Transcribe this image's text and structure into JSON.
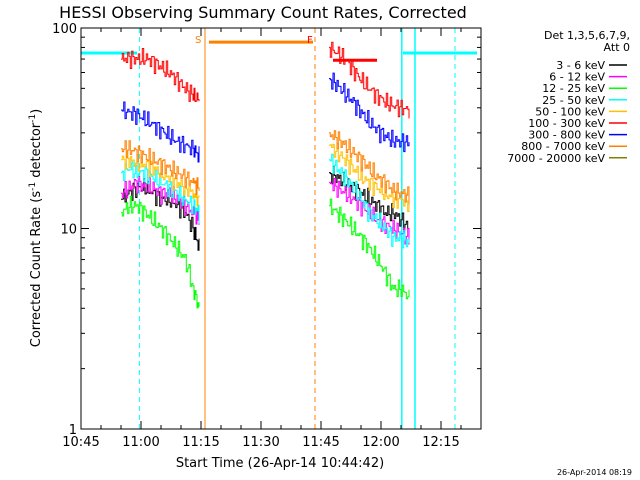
{
  "chart_data": {
    "type": "line",
    "title": "HESSI Observing Summary Count Rates, Corrected",
    "xlabel": "Start Time (26-Apr-14 10:44:42)",
    "ylabel": "Corrected Count Rate (s⁻¹ detector⁻¹)",
    "ylabel_main": "Corrected Count Rate (s",
    "ylabel_mid": " detector",
    "ylabel_end": ")",
    "yscale": "log",
    "ylim": [
      1,
      100
    ],
    "xlim_minutes": [
      0,
      100
    ],
    "x_ticks": [
      {
        "label": "10:45",
        "minute": 0
      },
      {
        "label": "11:00",
        "minute": 15
      },
      {
        "label": "11:15",
        "minute": 30
      },
      {
        "label": "11:30",
        "minute": 45
      },
      {
        "label": "11:45",
        "minute": 60
      },
      {
        "label": "12:00",
        "minute": 75
      },
      {
        "label": "12:15",
        "minute": 90
      }
    ],
    "y_ticks": [
      {
        "label": "1",
        "value": 1
      },
      {
        "label": "10",
        "value": 10
      },
      {
        "label": "100",
        "value": 100
      }
    ],
    "legend_header": [
      "Det 1,3,5,6,7,9,",
      "Att 0"
    ],
    "legend_placement": "right",
    "series": [
      {
        "name": "3 - 6 keV",
        "color": "#000000",
        "values": [
          [
            10,
            14
          ],
          [
            12,
            15
          ],
          [
            14,
            16
          ],
          [
            16,
            16
          ],
          [
            18,
            15
          ],
          [
            20,
            14
          ],
          [
            22,
            14
          ],
          [
            24,
            13
          ],
          [
            26,
            12
          ],
          [
            28,
            10
          ],
          [
            29.5,
            8
          ],
          [
            62,
            19
          ],
          [
            64,
            18
          ],
          [
            66,
            17
          ],
          [
            68,
            16
          ],
          [
            70,
            15
          ],
          [
            72,
            14
          ],
          [
            74,
            13
          ],
          [
            76,
            12
          ],
          [
            78,
            12
          ],
          [
            80,
            11
          ],
          [
            82,
            10
          ]
        ]
      },
      {
        "name": "6 - 12 keV",
        "color": "#ff00ff",
        "values": [
          [
            10,
            15
          ],
          [
            12,
            16
          ],
          [
            14,
            17
          ],
          [
            16,
            16
          ],
          [
            18,
            16
          ],
          [
            20,
            15
          ],
          [
            22,
            15
          ],
          [
            24,
            14
          ],
          [
            26,
            13
          ],
          [
            28,
            12
          ],
          [
            29.5,
            11
          ],
          [
            62,
            17
          ],
          [
            64,
            16
          ],
          [
            66,
            15
          ],
          [
            68,
            14
          ],
          [
            70,
            13
          ],
          [
            72,
            12
          ],
          [
            74,
            11
          ],
          [
            76,
            10.5
          ],
          [
            78,
            10
          ],
          [
            80,
            9.5
          ],
          [
            82,
            9
          ]
        ]
      },
      {
        "name": "12 - 25 keV",
        "color": "#00ff00",
        "values": [
          [
            10,
            12
          ],
          [
            12,
            13
          ],
          [
            14,
            13
          ],
          [
            16,
            12
          ],
          [
            18,
            11
          ],
          [
            20,
            10
          ],
          [
            22,
            9
          ],
          [
            24,
            8
          ],
          [
            26,
            7
          ],
          [
            28,
            5
          ],
          [
            29.5,
            4
          ],
          [
            62,
            13
          ],
          [
            64,
            12
          ],
          [
            66,
            11
          ],
          [
            68,
            10
          ],
          [
            70,
            9
          ],
          [
            72,
            8
          ],
          [
            74,
            7
          ],
          [
            76,
            6
          ],
          [
            78,
            5
          ],
          [
            80,
            5
          ],
          [
            82,
            4.5
          ]
        ]
      },
      {
        "name": "25 - 50 keV",
        "color": "#00ffff",
        "values": [
          [
            10,
            19
          ],
          [
            12,
            20
          ],
          [
            14,
            19
          ],
          [
            16,
            19
          ],
          [
            18,
            18
          ],
          [
            20,
            17
          ],
          [
            22,
            16
          ],
          [
            24,
            15
          ],
          [
            26,
            14
          ],
          [
            28,
            13
          ],
          [
            29.5,
            12
          ],
          [
            62,
            22
          ],
          [
            64,
            20
          ],
          [
            66,
            18
          ],
          [
            68,
            16
          ],
          [
            70,
            14
          ],
          [
            72,
            12
          ],
          [
            74,
            11
          ],
          [
            76,
            10
          ],
          [
            78,
            9
          ],
          [
            80,
            9
          ],
          [
            82,
            8.5
          ]
        ]
      },
      {
        "name": "50 - 100 keV",
        "color": "#ffc000",
        "values": [
          [
            10,
            22
          ],
          [
            12,
            22
          ],
          [
            14,
            21
          ],
          [
            16,
            21
          ],
          [
            18,
            20
          ],
          [
            20,
            19
          ],
          [
            22,
            18
          ],
          [
            24,
            17
          ],
          [
            26,
            16
          ],
          [
            28,
            15
          ],
          [
            29.5,
            14
          ],
          [
            62,
            26
          ],
          [
            64,
            24
          ],
          [
            66,
            22
          ],
          [
            68,
            20
          ],
          [
            70,
            18
          ],
          [
            72,
            17
          ],
          [
            74,
            16
          ],
          [
            76,
            15
          ],
          [
            78,
            14
          ],
          [
            80,
            14
          ],
          [
            82,
            13.5
          ]
        ]
      },
      {
        "name": "100 - 300 keV",
        "color": "#ff0000",
        "values": [
          [
            10,
            70
          ],
          [
            12,
            71
          ],
          [
            14,
            70
          ],
          [
            16,
            71
          ],
          [
            18,
            68
          ],
          [
            20,
            64
          ],
          [
            22,
            60
          ],
          [
            24,
            55
          ],
          [
            26,
            50
          ],
          [
            28,
            46
          ],
          [
            29.5,
            44
          ],
          [
            62,
            80
          ],
          [
            64,
            75
          ],
          [
            66,
            70
          ],
          [
            68,
            62
          ],
          [
            70,
            55
          ],
          [
            72,
            50
          ],
          [
            74,
            46
          ],
          [
            76,
            43
          ],
          [
            78,
            41
          ],
          [
            80,
            40
          ],
          [
            82,
            39
          ]
        ]
      },
      {
        "name": "300 - 800 keV",
        "color": "#0000ff",
        "values": [
          [
            10,
            39
          ],
          [
            12,
            38
          ],
          [
            14,
            37
          ],
          [
            16,
            35
          ],
          [
            18,
            33
          ],
          [
            20,
            31
          ],
          [
            22,
            29
          ],
          [
            24,
            27
          ],
          [
            26,
            26
          ],
          [
            28,
            25
          ],
          [
            29.5,
            23
          ],
          [
            62,
            56
          ],
          [
            64,
            52
          ],
          [
            66,
            47
          ],
          [
            68,
            43
          ],
          [
            70,
            38
          ],
          [
            72,
            34
          ],
          [
            74,
            31
          ],
          [
            76,
            29
          ],
          [
            78,
            27.5
          ],
          [
            80,
            27
          ],
          [
            82,
            27
          ]
        ]
      },
      {
        "name": "800 - 7000 keV",
        "color": "#ff8000",
        "values": [
          [
            10,
            25
          ],
          [
            12,
            25
          ],
          [
            14,
            24
          ],
          [
            16,
            23
          ],
          [
            18,
            22
          ],
          [
            20,
            21
          ],
          [
            22,
            20
          ],
          [
            24,
            19
          ],
          [
            26,
            18
          ],
          [
            28,
            17
          ],
          [
            29.5,
            16
          ],
          [
            62,
            30
          ],
          [
            64,
            28
          ],
          [
            66,
            26
          ],
          [
            68,
            24
          ],
          [
            70,
            22
          ],
          [
            72,
            20
          ],
          [
            74,
            18
          ],
          [
            76,
            17
          ],
          [
            78,
            15.5
          ],
          [
            80,
            15
          ],
          [
            82,
            14.5
          ]
        ]
      },
      {
        "name": "7000 - 20000 keV",
        "color": "#808000",
        "values": []
      }
    ],
    "annotations": [
      {
        "text": "S",
        "minute": 31,
        "color": "#ff8000"
      },
      {
        "text": "F",
        "minute": 59,
        "color": "#ff0000"
      }
    ],
    "timestamp": "26-Apr-2014 08:19"
  }
}
